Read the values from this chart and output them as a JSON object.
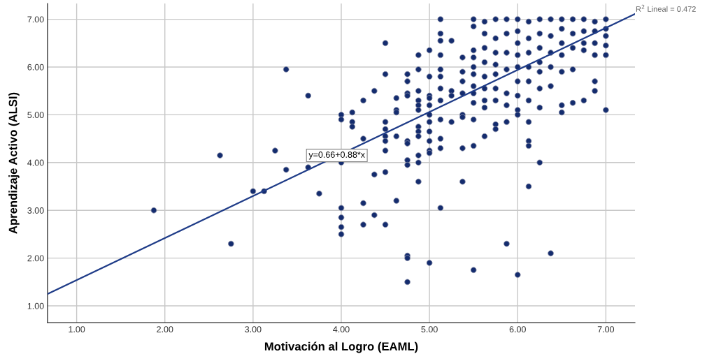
{
  "chart_data": {
    "type": "scatter",
    "xlabel": "Motivación al Logro (EAML)",
    "ylabel": "Aprendizaje Activo (ALSI)",
    "xlim": [
      0.67,
      7.33
    ],
    "ylim": [
      0.65,
      7.33
    ],
    "xticks": [
      {
        "value": 1,
        "label": "1.00"
      },
      {
        "value": 2,
        "label": "2.00"
      },
      {
        "value": 3,
        "label": "3.00"
      },
      {
        "value": 4,
        "label": "4.00"
      },
      {
        "value": 5,
        "label": "5.00"
      },
      {
        "value": 6,
        "label": "6.00"
      },
      {
        "value": 7,
        "label": "7.00"
      }
    ],
    "yticks": [
      {
        "value": 1,
        "label": "1.00"
      },
      {
        "value": 2,
        "label": "2.00"
      },
      {
        "value": 3,
        "label": "3.00"
      },
      {
        "value": 4,
        "label": "4.00"
      },
      {
        "value": 5,
        "label": "5.00"
      },
      {
        "value": 6,
        "label": "6.00"
      },
      {
        "value": 7,
        "label": "7.00"
      }
    ],
    "grid": true,
    "series": [
      {
        "color": "#142c6e",
        "marker": "circle",
        "x": [
          1.875,
          2.625,
          2.75,
          3.0,
          3.125,
          3.25,
          3.375,
          3.375,
          3.625,
          3.625,
          3.75,
          4.0,
          4.0,
          4.0,
          4.0,
          4.0,
          4.0,
          4.0,
          4.125,
          4.125,
          4.125,
          4.25,
          4.25,
          4.25,
          4.25,
          4.375,
          4.375,
          4.375,
          4.5,
          4.5,
          4.5,
          4.5,
          4.5,
          4.5,
          4.5,
          4.5,
          4.5,
          4.625,
          4.625,
          4.625,
          4.625,
          4.625,
          4.75,
          4.75,
          4.75,
          4.75,
          4.75,
          4.75,
          4.75,
          4.75,
          4.75,
          4.75,
          4.75,
          4.875,
          4.875,
          4.875,
          4.875,
          4.875,
          4.875,
          4.875,
          4.875,
          4.875,
          4.875,
          4.875,
          4.875,
          5.0,
          5.0,
          5.0,
          5.0,
          5.0,
          5.0,
          5.0,
          5.0,
          5.0,
          5.0,
          5.0,
          5.0,
          5.125,
          5.125,
          5.125,
          5.125,
          5.125,
          5.125,
          5.125,
          5.125,
          5.125,
          5.125,
          5.125,
          5.125,
          5.25,
          5.25,
          5.25,
          5.25,
          5.375,
          5.375,
          5.375,
          5.375,
          5.375,
          5.375,
          5.375,
          5.375,
          5.5,
          5.5,
          5.5,
          5.5,
          5.5,
          5.5,
          5.5,
          5.5,
          5.5,
          5.5,
          5.5,
          5.5,
          5.625,
          5.625,
          5.625,
          5.625,
          5.625,
          5.625,
          5.625,
          5.625,
          5.625,
          5.75,
          5.75,
          5.75,
          5.75,
          5.75,
          5.75,
          5.75,
          5.75,
          5.75,
          5.875,
          5.875,
          5.875,
          5.875,
          5.875,
          5.875,
          5.875,
          5.875,
          6.0,
          6.0,
          6.0,
          6.0,
          6.0,
          6.0,
          6.0,
          6.0,
          6.0,
          6.0,
          6.125,
          6.125,
          6.125,
          6.125,
          6.125,
          6.125,
          6.125,
          6.125,
          6.125,
          6.125,
          6.25,
          6.25,
          6.25,
          6.25,
          6.25,
          6.25,
          6.25,
          6.25,
          6.375,
          6.375,
          6.375,
          6.375,
          6.375,
          6.375,
          6.5,
          6.5,
          6.5,
          6.5,
          6.5,
          6.5,
          6.5,
          6.625,
          6.625,
          6.625,
          6.625,
          6.625,
          6.75,
          6.75,
          6.75,
          6.75,
          6.75,
          6.875,
          6.875,
          6.875,
          6.875,
          6.875,
          6.875,
          7.0,
          7.0,
          7.0,
          7.0,
          7.0,
          7.0
        ],
        "values": [
          3.0,
          4.15,
          2.3,
          3.4,
          3.4,
          4.25,
          5.95,
          3.85,
          5.4,
          3.9,
          3.35,
          5.0,
          4.9,
          4.0,
          3.05,
          2.85,
          2.65,
          2.5,
          5.05,
          4.85,
          4.75,
          5.3,
          4.5,
          3.15,
          2.7,
          5.5,
          3.75,
          2.9,
          6.5,
          5.85,
          4.85,
          4.7,
          4.55,
          4.45,
          4.25,
          3.8,
          2.7,
          5.35,
          5.1,
          5.05,
          4.55,
          3.2,
          5.85,
          5.7,
          5.45,
          5.4,
          4.45,
          4.4,
          4.05,
          3.95,
          2.05,
          2.0,
          1.5,
          6.25,
          5.95,
          5.5,
          5.3,
          5.2,
          5.1,
          4.75,
          4.65,
          4.55,
          4.15,
          4.0,
          3.6,
          6.35,
          5.8,
          5.4,
          5.35,
          5.2,
          5.0,
          4.85,
          4.65,
          4.45,
          4.25,
          4.2,
          1.9,
          7.0,
          6.7,
          6.55,
          6.25,
          5.95,
          5.8,
          5.55,
          5.3,
          4.9,
          4.5,
          4.3,
          3.05,
          6.55,
          5.5,
          5.4,
          4.85,
          6.2,
          5.9,
          5.7,
          5.45,
          5.0,
          4.95,
          4.3,
          3.6,
          7.0,
          6.85,
          6.35,
          6.2,
          6.0,
          5.85,
          5.6,
          5.45,
          5.25,
          4.9,
          4.35,
          1.75,
          6.95,
          6.7,
          6.4,
          6.1,
          5.8,
          5.55,
          5.3,
          5.15,
          4.55,
          7.0,
          6.6,
          6.3,
          6.05,
          5.85,
          5.55,
          5.3,
          4.8,
          4.7,
          7.0,
          6.7,
          6.3,
          5.95,
          5.45,
          5.2,
          4.85,
          2.3,
          7.0,
          6.75,
          6.5,
          6.25,
          6.0,
          5.7,
          5.4,
          5.1,
          5.0,
          1.65,
          6.95,
          6.6,
          6.3,
          6.0,
          5.7,
          5.3,
          4.85,
          4.45,
          4.35,
          3.5,
          7.0,
          6.7,
          6.4,
          6.1,
          5.9,
          5.55,
          5.15,
          4.0,
          7.0,
          6.65,
          6.3,
          6.0,
          5.6,
          2.1,
          7.0,
          6.8,
          6.5,
          6.25,
          5.9,
          5.2,
          5.05,
          7.0,
          6.7,
          6.4,
          5.95,
          5.25,
          7.0,
          6.75,
          6.5,
          6.35,
          5.3,
          6.95,
          6.75,
          6.5,
          6.25,
          5.7,
          5.5,
          7.0,
          6.8,
          6.65,
          6.45,
          6.25,
          5.1
        ]
      },
      {
        "type": "line",
        "marker": "none",
        "color": "#1f3c88",
        "x": [
          0.67,
          7.33
        ],
        "values": [
          1.25,
          7.11
        ]
      }
    ],
    "annotations": [
      {
        "text": "y=0.66+0.88*x",
        "x": 3.95,
        "y": 4.15
      },
      "R$^{2}$ Lineal = 0.472"
    ]
  }
}
